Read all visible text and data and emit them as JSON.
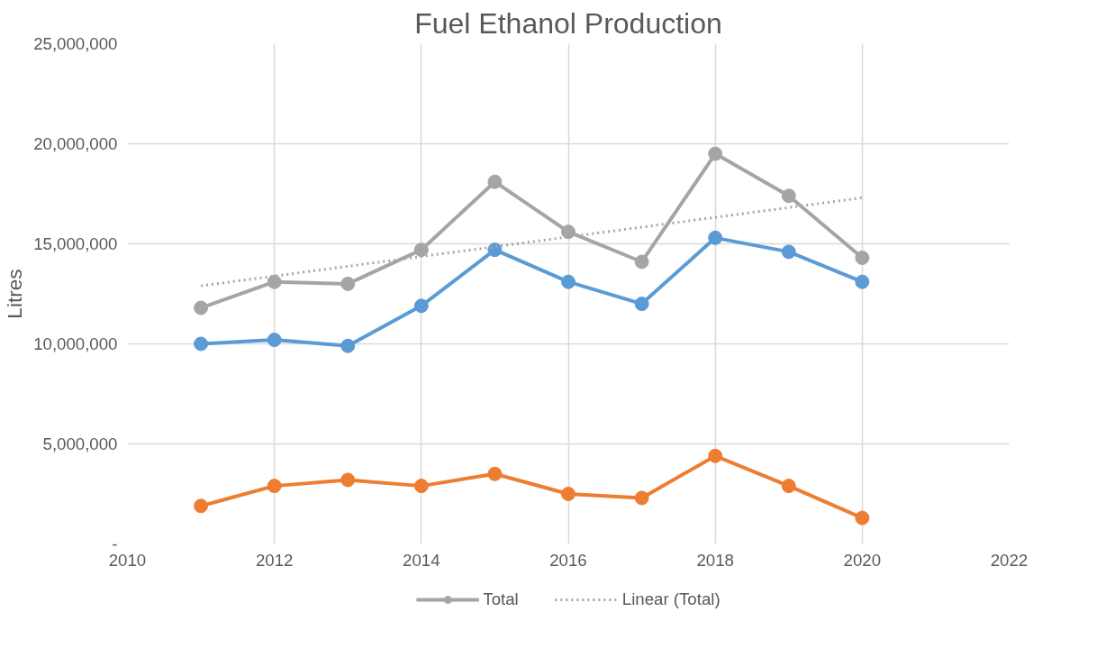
{
  "chart_data": {
    "type": "line",
    "title": "Fuel Ethanol Production",
    "ylabel": "Litres",
    "x": [
      2011,
      2012,
      2013,
      2014,
      2015,
      2016,
      2017,
      2018,
      2019,
      2020
    ],
    "series": [
      {
        "color": "#5b9bd5",
        "values": [
          10000000,
          10200000,
          9900000,
          11900000,
          14700000,
          13100000,
          12000000,
          15300000,
          14600000,
          13100000
        ]
      },
      {
        "color": "#ed7d31",
        "values": [
          1900000,
          2900000,
          3200000,
          2900000,
          3500000,
          2500000,
          2300000,
          4400000,
          2900000,
          1300000
        ]
      },
      {
        "name": "Total",
        "color": "#a5a5a5",
        "values": [
          11800000,
          13100000,
          13000000,
          14700000,
          18100000,
          15600000,
          14100000,
          19500000,
          17400000,
          14300000
        ]
      },
      {
        "name": "Linear (Total)",
        "color": "#a5a5a5",
        "x": [
          2011,
          2020
        ],
        "values": [
          12900000,
          17300000
        ],
        "marker": "none",
        "line_style": "dotted"
      }
    ],
    "marker": "circle",
    "line_style": "solid",
    "xlim": [
      2010,
      2022
    ],
    "xticks": [
      2010,
      2012,
      2014,
      2016,
      2018,
      2020,
      2022
    ],
    "ylim": [
      0,
      25000000
    ],
    "yticks": [
      {
        "value": 0,
        "label": "-"
      },
      {
        "value": 5000000,
        "label": "5,000,000"
      },
      {
        "value": 10000000,
        "label": "10,000,000"
      },
      {
        "value": 15000000,
        "label": "15,000,000"
      },
      {
        "value": 20000000,
        "label": "20,000,000"
      },
      {
        "value": 25000000,
        "label": "25,000,000"
      }
    ],
    "grid": true,
    "legend": "bottom"
  }
}
